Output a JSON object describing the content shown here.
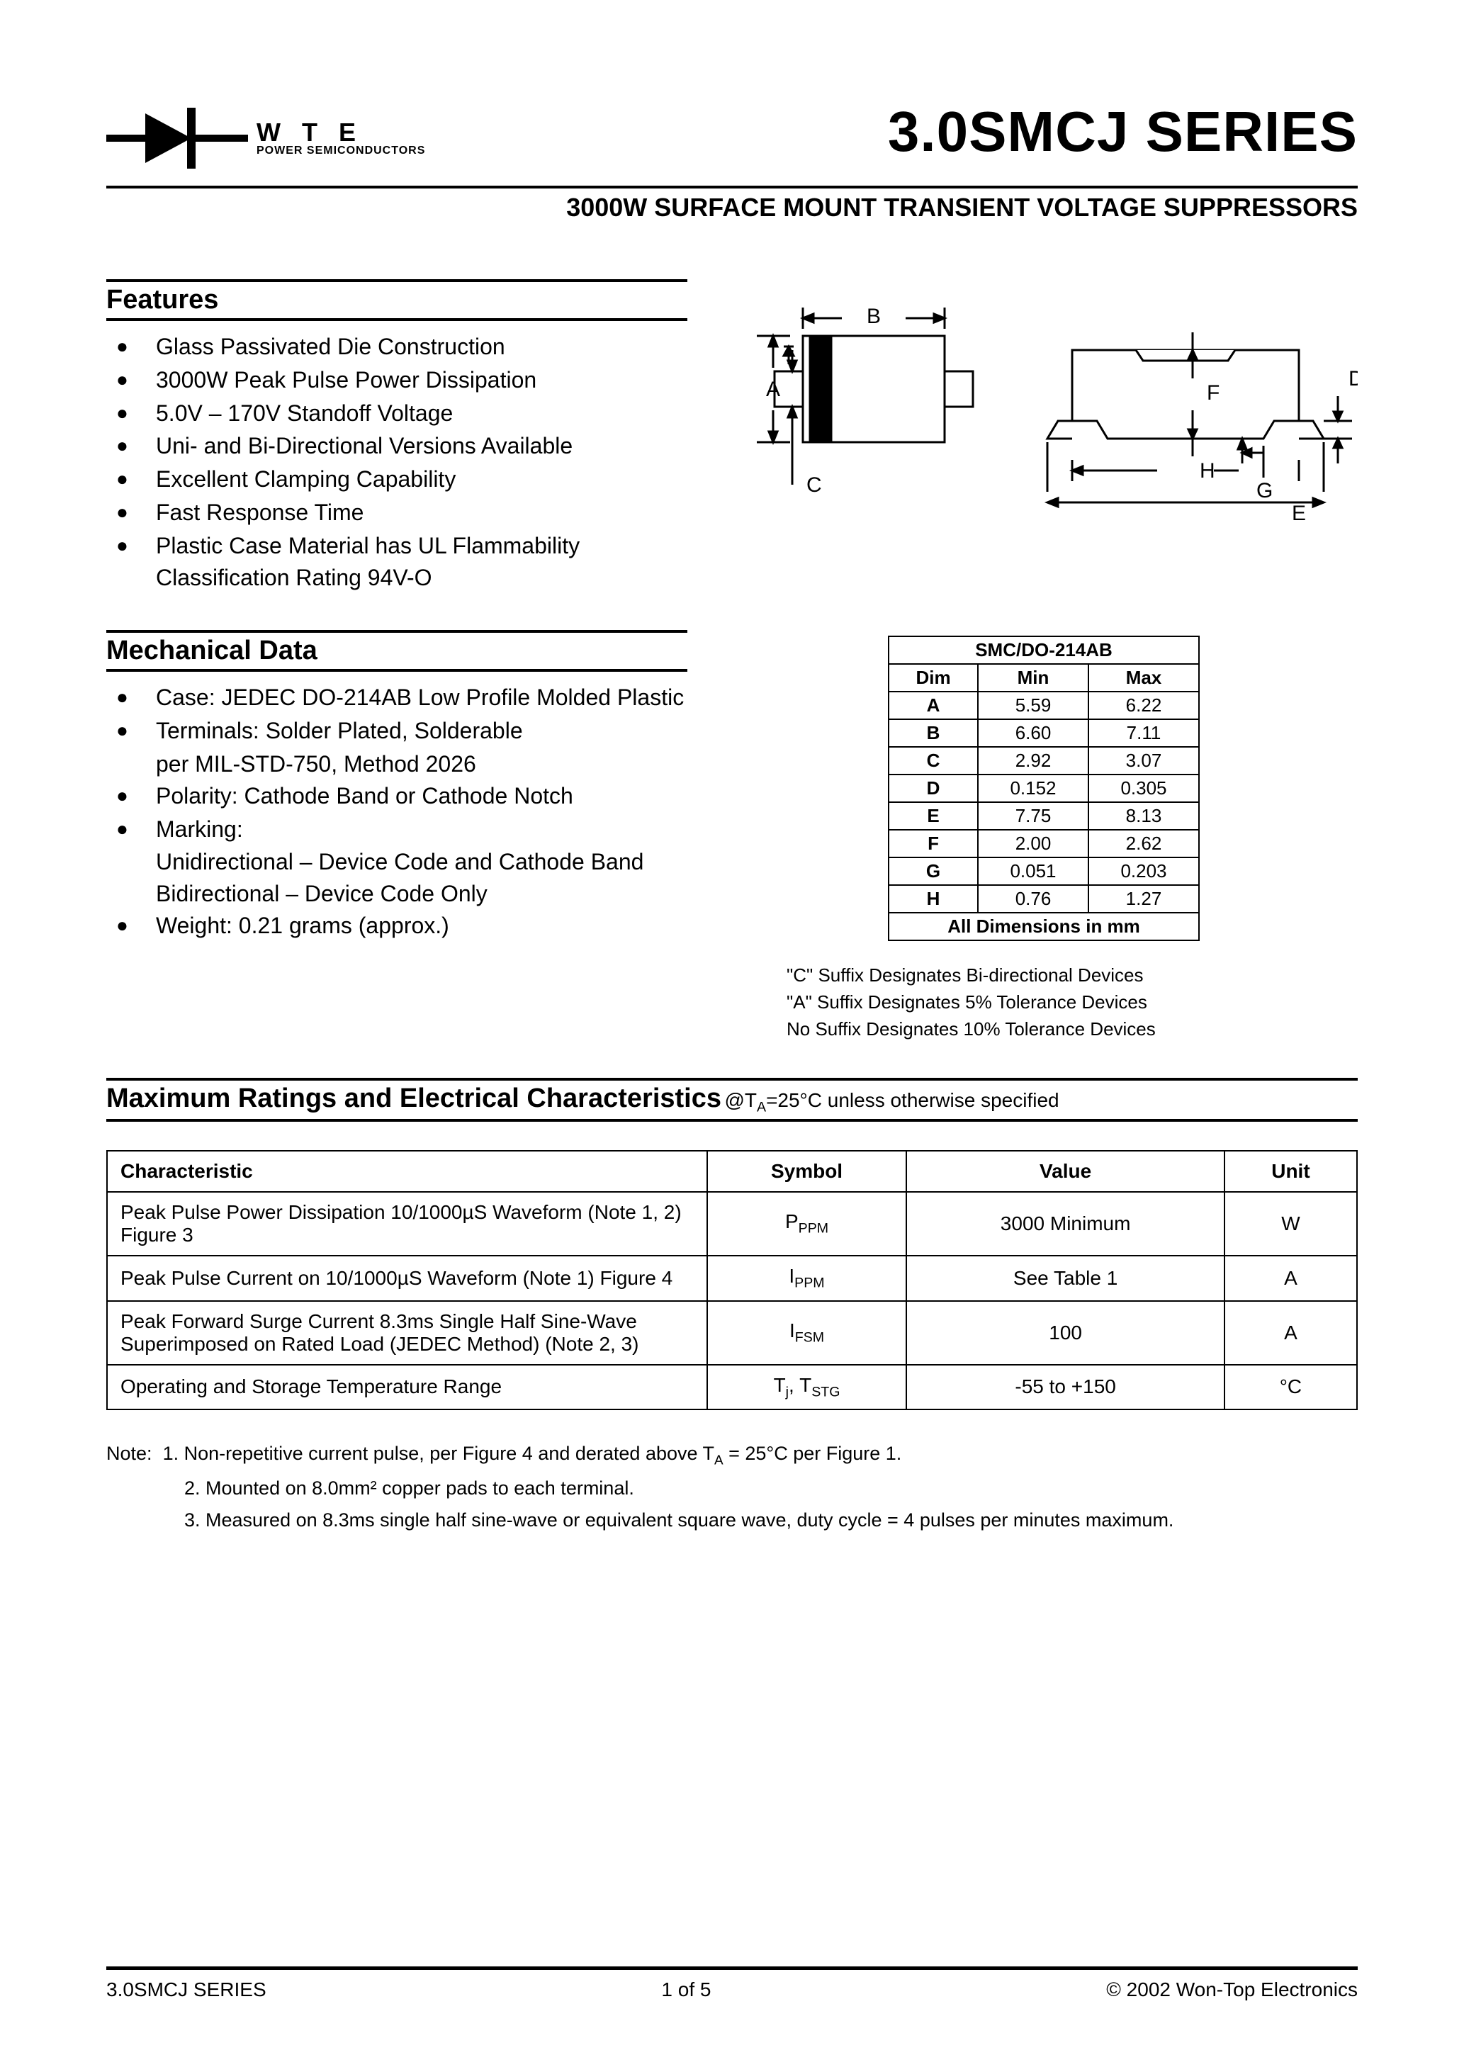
{
  "header": {
    "logo_main": "W T E",
    "logo_sub": "POWER SEMICONDUCTORS",
    "title": "3.0SMCJ SERIES",
    "subtitle": "3000W SURFACE MOUNT TRANSIENT VOLTAGE SUPPRESSORS"
  },
  "features": {
    "title": "Features",
    "items": [
      "Glass Passivated Die Construction",
      "3000W Peak Pulse Power Dissipation",
      "5.0V – 170V Standoff Voltage",
      "Uni- and Bi-Directional Versions Available",
      "Excellent Clamping Capability",
      "Fast Response Time",
      "Plastic Case Material has UL Flammability Classification Rating 94V-O"
    ]
  },
  "mechanical": {
    "title": "Mechanical Data",
    "items": [
      "Case: JEDEC DO-214AB Low Profile Molded Plastic",
      "Terminals: Solder Plated, Solderable",
      "Polarity: Cathode Band or Cathode Notch",
      "Marking:",
      "Weight: 0.21 grams (approx.)"
    ],
    "terminals_sub": "per MIL-STD-750, Method 2026",
    "marking_sub1": "Unidirectional – Device Code and Cathode Band",
    "marking_sub2": "Bidirectional – Device Code Only"
  },
  "diagram": {
    "labels": [
      "A",
      "B",
      "C",
      "D",
      "E",
      "F",
      "G",
      "H"
    ],
    "left_body_fill": "#000000",
    "lead_fill": "#ffffff",
    "stroke": "#000000"
  },
  "dim_table": {
    "title": "SMC/DO-214AB",
    "headers": [
      "Dim",
      "Min",
      "Max"
    ],
    "rows": [
      [
        "A",
        "5.59",
        "6.22"
      ],
      [
        "B",
        "6.60",
        "7.11"
      ],
      [
        "C",
        "2.92",
        "3.07"
      ],
      [
        "D",
        "0.152",
        "0.305"
      ],
      [
        "E",
        "7.75",
        "8.13"
      ],
      [
        "F",
        "2.00",
        "2.62"
      ],
      [
        "G",
        "0.051",
        "0.203"
      ],
      [
        "H",
        "0.76",
        "1.27"
      ]
    ],
    "caption": "All Dimensions in mm"
  },
  "suffix_notes": [
    "\"C\" Suffix Designates Bi-directional Devices",
    "\"A\" Suffix Designates 5% Tolerance Devices",
    "No Suffix Designates 10% Tolerance Devices"
  ],
  "max_ratings": {
    "title": "Maximum Ratings and Electrical Characteristics",
    "condition_prefix": " @T",
    "condition_sub": "A",
    "condition_suffix": "=25°C unless otherwise specified",
    "headers": [
      "Characteristic",
      "Symbol",
      "Value",
      "Unit"
    ],
    "rows": [
      {
        "char": "Peak Pulse Power Dissipation 10/1000µS Waveform (Note 1, 2) Figure 3",
        "sym_main": "P",
        "sym_sub": "PPM",
        "value": "3000 Minimum",
        "unit": "W"
      },
      {
        "char": "Peak Pulse Current on 10/1000µS Waveform (Note 1) Figure 4",
        "sym_main": "I",
        "sym_sub": "PPM",
        "value": "See Table 1",
        "unit": "A"
      },
      {
        "char": "Peak Forward Surge Current 8.3ms Single Half Sine-Wave Superimposed on Rated Load (JEDEC Method) (Note 2, 3)",
        "sym_main": "I",
        "sym_sub": "FSM",
        "value": "100",
        "unit": "A"
      },
      {
        "char": "Operating and Storage Temperature Range",
        "sym_main": "T",
        "sym_sub": "j",
        "sym2_main": ", T",
        "sym2_sub": "STG",
        "value": "-55 to +150",
        "unit": "°C"
      }
    ]
  },
  "notes": {
    "prefix": "Note:",
    "n1_a": "1. Non-repetitive current pulse, per Figure 4 and derated above T",
    "n1_sub": "A",
    "n1_b": " = 25°C per Figure 1.",
    "items_rest": [
      "2. Mounted on 8.0mm² copper pads to each terminal.",
      "3. Measured on 8.3ms single half sine-wave or equivalent square wave, duty cycle = 4 pulses per minutes maximum."
    ]
  },
  "footer": {
    "left": "3.0SMCJ SERIES",
    "center": "1  of  5",
    "right": "© 2002 Won-Top Electronics"
  }
}
